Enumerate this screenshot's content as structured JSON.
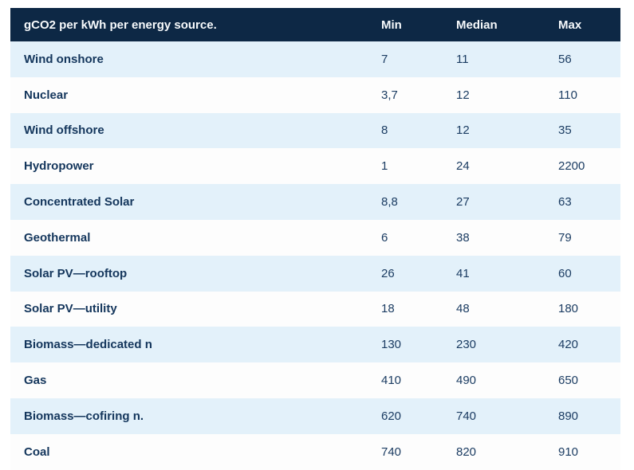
{
  "chart_data": {
    "type": "table",
    "title": "gCO2 per kWh per energy source.",
    "columns": [
      "Min",
      "Median",
      "Max"
    ],
    "rows": [
      {
        "source": "Wind onshore",
        "min": "7",
        "median": "11",
        "max": "56"
      },
      {
        "source": "Nuclear",
        "min": "3,7",
        "median": "12",
        "max": "110"
      },
      {
        "source": "Wind offshore",
        "min": "8",
        "median": "12",
        "max": "35"
      },
      {
        "source": "Hydropower",
        "min": "1",
        "median": "24",
        "max": "2200"
      },
      {
        "source": "Concentrated Solar",
        "min": "8,8",
        "median": "27",
        "max": "63"
      },
      {
        "source": "Geothermal",
        "min": "6",
        "median": "38",
        "max": "79"
      },
      {
        "source": "Solar PV—rooftop",
        "min": "26",
        "median": "41",
        "max": "60"
      },
      {
        "source": "Solar PV—utility",
        "min": "18",
        "median": "48",
        "max": "180"
      },
      {
        "source": "Biomass—dedicated n",
        "min": "130",
        "median": "230",
        "max": "420"
      },
      {
        "source": "Gas",
        "min": "410",
        "median": "490",
        "max": "650"
      },
      {
        "source": "Biomass—cofiring n.",
        "min": "620",
        "median": "740",
        "max": "890"
      },
      {
        "source": "Coal",
        "min": "740",
        "median": "820",
        "max": "910"
      }
    ],
    "layout": {
      "striped": true,
      "header_background": "#0d2845",
      "stripe_color": "#e3f1fa",
      "alt_row_color": "#fdfdfd",
      "text_color": "#16395f",
      "header_text_color": "#f7fafc"
    }
  }
}
